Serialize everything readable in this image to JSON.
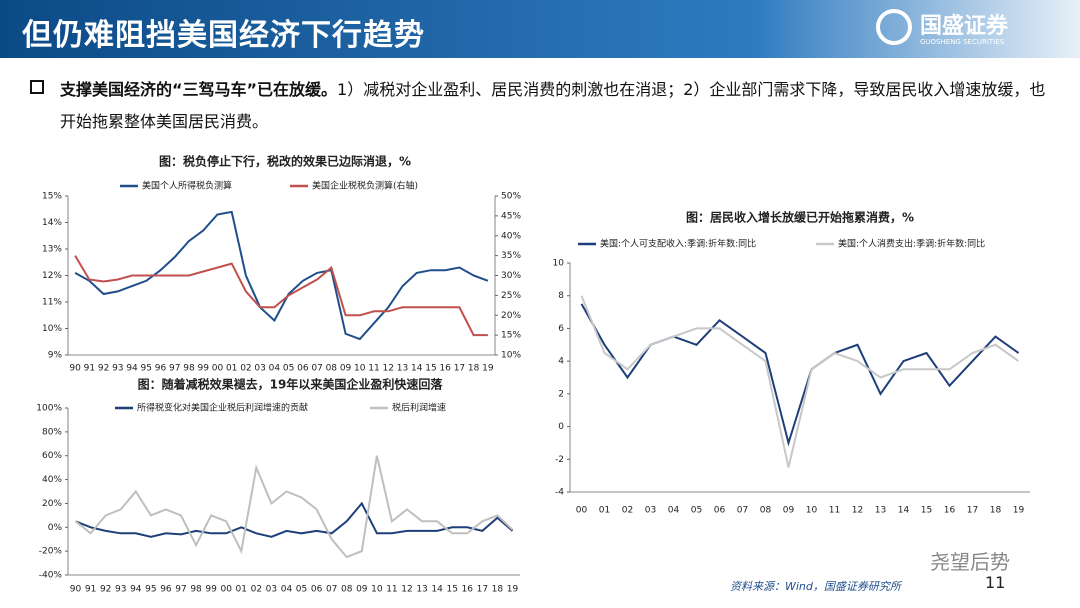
{
  "header": {
    "title": "但仍难阻挡美国经济下行趋势",
    "logo": "国盛证券",
    "logo_sub": "GUOSHENG SECURITIES"
  },
  "bullet": {
    "bold": "支撑美国经济的“三驾马车”已在放缓。",
    "text": "1）减税对企业盈利、居民消费的刺激也在消退；2）企业部门需求下降，导致居民收入增速放缓，也开始拖累整体美国居民消费。"
  },
  "source": "资料来源：Wind，国盛证券研究所",
  "page_number": "11",
  "watermark": "尧望后势",
  "chart_data": [
    {
      "type": "line",
      "title": "图：税负停止下行，税改的效果已边际消退，%",
      "categories": [
        "90",
        "91",
        "92",
        "93",
        "94",
        "95",
        "96",
        "97",
        "98",
        "99",
        "00",
        "01",
        "02",
        "03",
        "04",
        "05",
        "06",
        "07",
        "08",
        "09",
        "10",
        "11",
        "12",
        "13",
        "14",
        "15",
        "16",
        "17",
        "18",
        "19"
      ],
      "series": [
        {
          "name": "美国个人所得税负测算",
          "color": "#1f4e8c",
          "values": [
            12.1,
            11.8,
            11.3,
            11.4,
            11.6,
            11.8,
            12.2,
            12.7,
            13.3,
            13.7,
            14.3,
            14.4,
            12.0,
            10.8,
            10.3,
            11.3,
            11.8,
            12.1,
            12.2,
            9.8,
            9.6,
            10.2,
            10.8,
            11.6,
            12.1,
            12.2,
            12.2,
            12.3,
            12.0,
            11.8
          ]
        },
        {
          "name": "美国企业税税负测算(右轴)",
          "color": "#c0504d",
          "axis": "y2",
          "values": [
            35,
            29,
            28.5,
            29,
            30,
            30,
            30,
            30,
            30,
            31,
            32,
            33,
            26,
            22,
            22,
            25,
            27,
            29,
            32,
            20,
            20,
            21,
            21,
            22,
            22,
            22,
            22,
            22,
            15,
            15
          ]
        }
      ],
      "ylim": [
        9,
        15
      ],
      "yticks": [
        {
          "value": 9,
          "label": "9%"
        },
        {
          "value": 10,
          "label": "10%"
        },
        {
          "value": 11,
          "label": "11%"
        },
        {
          "value": 12,
          "label": "12%"
        },
        {
          "value": 13,
          "label": "13%"
        },
        {
          "value": 14,
          "label": "14%"
        },
        {
          "value": 15,
          "label": "15%"
        }
      ],
      "y2lim": [
        10,
        50
      ],
      "y2ticks": [
        {
          "value": 10,
          "label": "10%"
        },
        {
          "value": 15,
          "label": "15%"
        },
        {
          "value": 20,
          "label": "20%"
        },
        {
          "value": 25,
          "label": "25%"
        },
        {
          "value": 30,
          "label": "30%"
        },
        {
          "value": 35,
          "label": "35%"
        },
        {
          "value": 40,
          "label": "40%"
        },
        {
          "value": 45,
          "label": "45%"
        },
        {
          "value": 50,
          "label": "50%"
        }
      ]
    },
    {
      "type": "line",
      "title": "图：随着减税效果褪去，19年以来美国企业盈利快速回落",
      "categories": [
        "90",
        "91",
        "92",
        "93",
        "94",
        "95",
        "96",
        "97",
        "98",
        "99",
        "00",
        "01",
        "02",
        "03",
        "04",
        "05",
        "06",
        "07",
        "08",
        "09",
        "10",
        "11",
        "12",
        "13",
        "14",
        "15",
        "16",
        "17",
        "18",
        "19"
      ],
      "series": [
        {
          "name": "所得税变化对美国企业税后利润增速的贡献",
          "color": "#1f3f7a",
          "values": [
            5,
            0,
            -3,
            -5,
            -5,
            -8,
            -5,
            -6,
            -3,
            -5,
            -5,
            0,
            -5,
            -8,
            -3,
            -5,
            -3,
            -5,
            5,
            20,
            -5,
            -5,
            -3,
            -3,
            -3,
            0,
            0,
            -3,
            8,
            -3
          ]
        },
        {
          "name": "税后利润增速",
          "color": "#bfbfbf",
          "values": [
            5,
            -5,
            10,
            15,
            30,
            10,
            15,
            10,
            -15,
            10,
            5,
            -20,
            50,
            20,
            30,
            25,
            15,
            -10,
            -25,
            -20,
            60,
            5,
            15,
            5,
            5,
            -5,
            -5,
            5,
            10,
            -2
          ]
        }
      ],
      "ylim": [
        -40,
        100
      ],
      "yticks": [
        {
          "value": -40,
          "label": "-40%"
        },
        {
          "value": -20,
          "label": "-20%"
        },
        {
          "value": 0,
          "label": "0%"
        },
        {
          "value": 20,
          "label": "20%"
        },
        {
          "value": 40,
          "label": "40%"
        },
        {
          "value": 60,
          "label": "60%"
        },
        {
          "value": 80,
          "label": "80%"
        },
        {
          "value": 100,
          "label": "100%"
        }
      ]
    },
    {
      "type": "line",
      "title": "图：居民收入增长放缓已开始拖累消费，%",
      "categories": [
        "00",
        "01",
        "02",
        "03",
        "04",
        "05",
        "06",
        "07",
        "08",
        "09",
        "10",
        "11",
        "12",
        "13",
        "14",
        "15",
        "16",
        "17",
        "18",
        "19"
      ],
      "series": [
        {
          "name": "美国:个人可支配收入:季调:折年数:同比",
          "color": "#1f3f7a",
          "values": [
            7.5,
            5,
            3,
            5,
            5.5,
            5,
            6.5,
            5.5,
            4.5,
            -1,
            3.5,
            4.5,
            5,
            2,
            4,
            4.5,
            2.5,
            4,
            5.5,
            4.5
          ]
        },
        {
          "name": "美国:个人消费支出:季调:折年数:同比",
          "color": "#c8c8c8",
          "values": [
            8,
            4.5,
            3.5,
            5,
            5.5,
            6,
            6,
            5,
            4,
            -2.5,
            3.5,
            4.5,
            4,
            3,
            3.5,
            3.5,
            3.5,
            4.5,
            5,
            4
          ]
        }
      ],
      "ylim": [
        -4,
        10
      ],
      "yticks": [
        -4,
        -2,
        0,
        2,
        4,
        6,
        8,
        10
      ]
    }
  ]
}
